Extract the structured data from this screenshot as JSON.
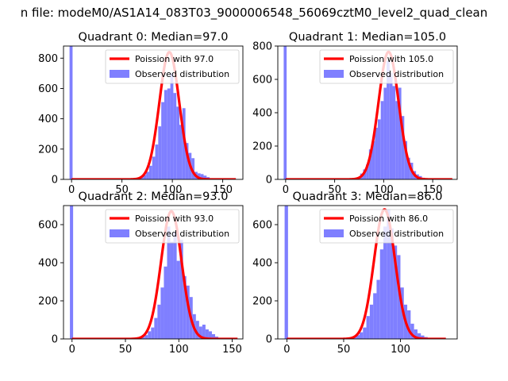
{
  "suptitle": "n file: modeM0/AS1A14_083T03_9000006548_56069cztM0_level2_quad_clean",
  "colors": {
    "observed": "#7f7fff",
    "poisson": "#ff0000"
  },
  "chart_data": [
    {
      "type": "bar",
      "title": "Quadrant 0: Median=97.0",
      "xlim": [
        -8,
        170
      ],
      "ylim": [
        0,
        880
      ],
      "xticks": [
        0,
        50,
        100,
        150
      ],
      "yticks": [
        0,
        200,
        400,
        600,
        800
      ],
      "legend": {
        "placement": "top-right",
        "poisson_label": "Poission with 97.0",
        "observed_label": "Observed distribution"
      },
      "poisson": {
        "mean": 97.0,
        "peak": 840,
        "range": [
          0,
          163
        ]
      },
      "bins": [
        [
          -2,
          1,
          880
        ],
        [
          65,
          68,
          5
        ],
        [
          68,
          71,
          15
        ],
        [
          71,
          74,
          30
        ],
        [
          74,
          77,
          50
        ],
        [
          77,
          80,
          90
        ],
        [
          80,
          83,
          150
        ],
        [
          83,
          86,
          230
        ],
        [
          86,
          89,
          350
        ],
        [
          89,
          92,
          510
        ],
        [
          92,
          95,
          590
        ],
        [
          95,
          98,
          600
        ],
        [
          98,
          101,
          700
        ],
        [
          101,
          104,
          570
        ],
        [
          104,
          107,
          480
        ],
        [
          107,
          110,
          360
        ],
        [
          110,
          113,
          470
        ],
        [
          113,
          116,
          240
        ],
        [
          116,
          119,
          175
        ],
        [
          119,
          122,
          140
        ],
        [
          122,
          125,
          50
        ],
        [
          125,
          128,
          40
        ],
        [
          128,
          131,
          35
        ],
        [
          131,
          134,
          25
        ],
        [
          134,
          137,
          15
        ],
        [
          137,
          140,
          8
        ]
      ]
    },
    {
      "type": "bar",
      "title": "Quadrant 1: Median=105.0",
      "xlim": [
        -8,
        175
      ],
      "ylim": [
        0,
        800
      ],
      "xticks": [
        0,
        50,
        100,
        150
      ],
      "yticks": [
        0,
        200,
        400,
        600,
        800
      ],
      "legend": {
        "placement": "top-right",
        "poisson_label": "Poission with 105.0",
        "observed_label": "Observed distribution"
      },
      "poisson": {
        "mean": 105.0,
        "peak": 765,
        "range": [
          0,
          170
        ]
      },
      "bins": [
        [
          -2,
          1,
          800
        ],
        [
          70,
          73,
          5
        ],
        [
          73,
          76,
          12
        ],
        [
          76,
          79,
          35
        ],
        [
          79,
          82,
          60
        ],
        [
          82,
          85,
          90
        ],
        [
          85,
          88,
          180
        ],
        [
          88,
          91,
          230
        ],
        [
          91,
          94,
          310
        ],
        [
          94,
          97,
          360
        ],
        [
          97,
          100,
          470
        ],
        [
          100,
          103,
          550
        ],
        [
          103,
          106,
          710
        ],
        [
          106,
          109,
          640
        ],
        [
          109,
          112,
          560
        ],
        [
          112,
          115,
          470
        ],
        [
          115,
          118,
          550
        ],
        [
          118,
          121,
          380
        ],
        [
          121,
          124,
          230
        ],
        [
          124,
          127,
          130
        ],
        [
          127,
          130,
          100
        ],
        [
          130,
          133,
          50
        ],
        [
          133,
          136,
          30
        ],
        [
          136,
          139,
          20
        ],
        [
          139,
          142,
          10
        ],
        [
          142,
          145,
          5
        ]
      ]
    },
    {
      "type": "bar",
      "title": "Quadrant 2: Median=93.0",
      "xlim": [
        -8,
        160
      ],
      "ylim": [
        0,
        700
      ],
      "xticks": [
        0,
        50,
        100,
        150
      ],
      "yticks": [
        0,
        200,
        400,
        600
      ],
      "legend": {
        "placement": "top-right",
        "poisson_label": "Poission with 93.0",
        "observed_label": "Observed distribution"
      },
      "poisson": {
        "mean": 93.0,
        "peak": 670,
        "range": [
          0,
          155
        ]
      },
      "bins": [
        [
          -2,
          1,
          700
        ],
        [
          62,
          65,
          5
        ],
        [
          65,
          68,
          10
        ],
        [
          68,
          71,
          20
        ],
        [
          71,
          74,
          40
        ],
        [
          74,
          77,
          60
        ],
        [
          77,
          80,
          110
        ],
        [
          80,
          83,
          180
        ],
        [
          83,
          86,
          270
        ],
        [
          86,
          89,
          380
        ],
        [
          89,
          92,
          590
        ],
        [
          92,
          95,
          510
        ],
        [
          95,
          98,
          560
        ],
        [
          98,
          101,
          410
        ],
        [
          101,
          104,
          520
        ],
        [
          104,
          107,
          330
        ],
        [
          107,
          110,
          280
        ],
        [
          110,
          113,
          220
        ],
        [
          113,
          116,
          130
        ],
        [
          116,
          119,
          95
        ],
        [
          119,
          122,
          65
        ],
        [
          122,
          125,
          75
        ],
        [
          125,
          128,
          50
        ],
        [
          128,
          131,
          40
        ],
        [
          131,
          134,
          25
        ],
        [
          134,
          137,
          12
        ]
      ]
    },
    {
      "type": "bar",
      "title": "Quadrant 3: Median=86.0",
      "xlim": [
        -8,
        150
      ],
      "ylim": [
        0,
        700
      ],
      "xticks": [
        0,
        50,
        100
      ],
      "yticks": [
        0,
        200,
        400,
        600
      ],
      "legend": {
        "placement": "top-right",
        "poisson_label": "Poission with 86.0",
        "observed_label": "Observed distribution"
      },
      "poisson": {
        "mean": 86.0,
        "peak": 680,
        "range": [
          0,
          140
        ]
      },
      "bins": [
        [
          -2,
          1,
          700
        ],
        [
          55,
          58,
          5
        ],
        [
          58,
          61,
          10
        ],
        [
          61,
          64,
          20
        ],
        [
          64,
          67,
          35
        ],
        [
          67,
          70,
          60
        ],
        [
          70,
          73,
          120
        ],
        [
          73,
          76,
          180
        ],
        [
          76,
          79,
          240
        ],
        [
          79,
          82,
          310
        ],
        [
          82,
          85,
          470
        ],
        [
          85,
          88,
          590
        ],
        [
          88,
          91,
          680
        ],
        [
          91,
          94,
          580
        ],
        [
          94,
          97,
          490
        ],
        [
          97,
          100,
          440
        ],
        [
          100,
          103,
          270
        ],
        [
          103,
          106,
          180
        ],
        [
          106,
          109,
          150
        ],
        [
          109,
          112,
          80
        ],
        [
          112,
          115,
          50
        ],
        [
          115,
          118,
          30
        ],
        [
          118,
          121,
          18
        ],
        [
          121,
          124,
          10
        ],
        [
          124,
          127,
          5
        ]
      ]
    }
  ]
}
